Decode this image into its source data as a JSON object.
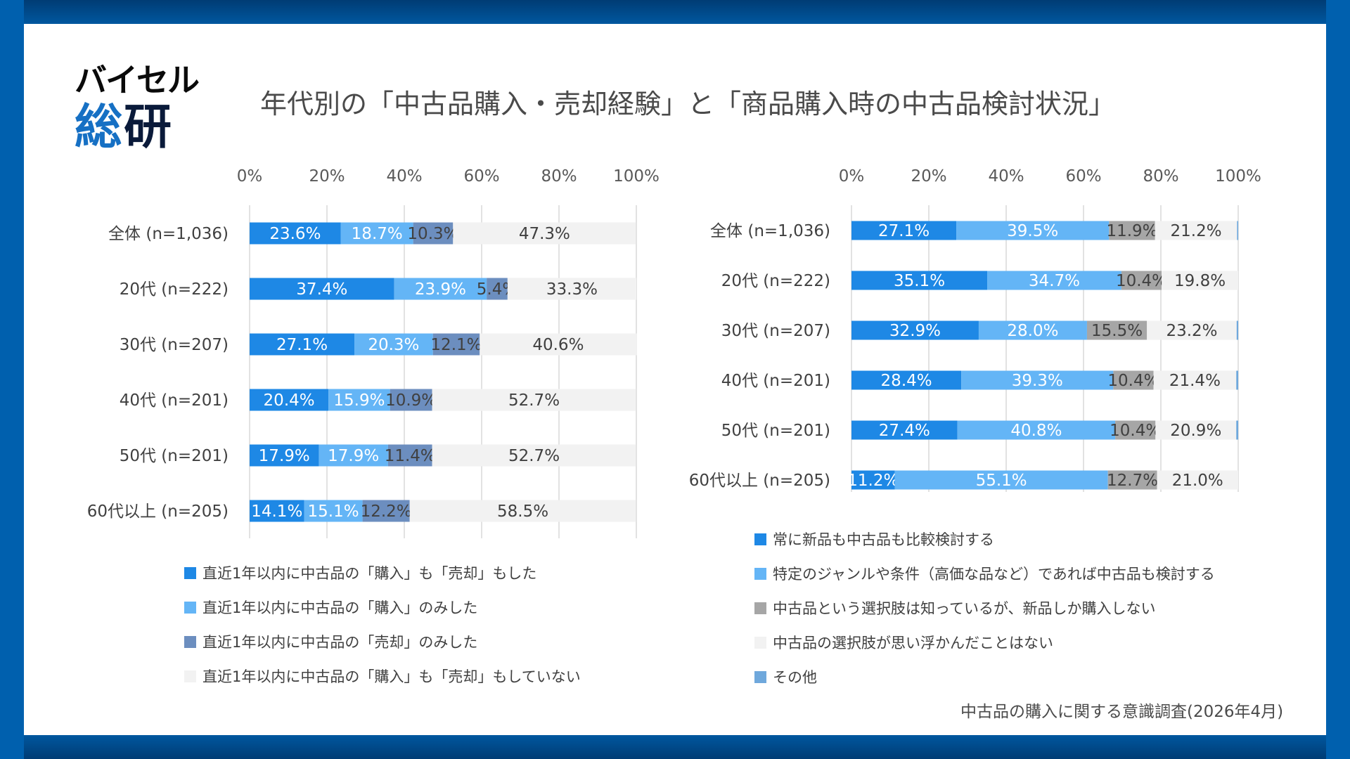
{
  "brand": {
    "logo_line1": "バイセル",
    "logo_line2a": "総",
    "logo_line2b": "研"
  },
  "title": "年代別の「中古品購入・売却経験」と「商品購入時の中古品検討状況」",
  "footnote": "中古品の購入に関する意識調査(2026年4月)",
  "colors": {
    "blue_dark": "#1E88E5",
    "blue_light": "#64B5F6",
    "steel": "#6C8EBF",
    "gray": "#A6A6A6",
    "pale": "#F2F2F2",
    "other": "#6FA8DC"
  },
  "chart_data": [
    {
      "type": "bar",
      "orientation": "horizontal",
      "stacked": true,
      "title": "",
      "xlabel": "",
      "ylabel": "",
      "xlim": [
        0,
        100
      ],
      "ticks": [
        "0%",
        "20%",
        "40%",
        "60%",
        "80%",
        "100%"
      ],
      "grid": true,
      "categories": [
        "全体 (n=1,036)",
        "20代 (n=222)",
        "30代 (n=207)",
        "40代 (n=201)",
        "50代 (n=201)",
        "60代以上 (n=205)"
      ],
      "series": [
        {
          "name": "直近1年以内に中古品の「購入」も「売却」もした",
          "color": "#1E88E5",
          "label_color": "#FFFFFF",
          "values": [
            23.6,
            37.4,
            27.1,
            20.4,
            17.9,
            14.1
          ],
          "labels": [
            "23.6%",
            "37.4%",
            "27.1%",
            "20.4%",
            "17.9%",
            "14.1%"
          ]
        },
        {
          "name": "直近1年以内に中古品の「購入」のみした",
          "color": "#64B5F6",
          "label_color": "#FFFFFF",
          "values": [
            18.7,
            23.9,
            20.3,
            15.9,
            17.9,
            15.1
          ],
          "labels": [
            "18.7%",
            "23.9%",
            "20.3%",
            "15.9%",
            "17.9%",
            "15.1%"
          ]
        },
        {
          "name": "直近1年以内に中古品の「売却」のみした",
          "color": "#6C8EBF",
          "label_color": "#404040",
          "values": [
            10.3,
            5.4,
            12.1,
            10.9,
            11.4,
            12.2
          ],
          "labels": [
            "10.3%",
            "5.4%",
            "12.1%",
            "10.9%",
            "11.4%",
            "12.2%"
          ]
        },
        {
          "name": "直近1年以内に中古品の「購入」も「売却」もしていない",
          "color": "#F2F2F2",
          "label_color": "#404040",
          "values": [
            47.3,
            33.3,
            40.6,
            52.7,
            52.7,
            58.5
          ],
          "labels": [
            "47.3%",
            "33.3%",
            "40.6%",
            "52.7%",
            "52.7%",
            "58.5%"
          ]
        }
      ],
      "legend_position": "bottom"
    },
    {
      "type": "bar",
      "orientation": "horizontal",
      "stacked": true,
      "title": "",
      "xlabel": "",
      "ylabel": "",
      "xlim": [
        0,
        100
      ],
      "ticks": [
        "0%",
        "20%",
        "40%",
        "60%",
        "80%",
        "100%"
      ],
      "grid": true,
      "categories": [
        "全体 (n=1,036)",
        "20代 (n=222)",
        "30代 (n=207)",
        "40代 (n=201)",
        "50代 (n=201)",
        "60代以上 (n=205)"
      ],
      "series": [
        {
          "name": "常に新品も中古品も比較検討する",
          "color": "#1E88E5",
          "label_color": "#FFFFFF",
          "values": [
            27.1,
            35.1,
            32.9,
            28.4,
            27.4,
            11.2
          ],
          "labels": [
            "27.1%",
            "35.1%",
            "32.9%",
            "28.4%",
            "27.4%",
            "11.2%"
          ]
        },
        {
          "name": "特定のジャンルや条件（高価な品など）であれば中古品も検討する",
          "color": "#64B5F6",
          "label_color": "#FFFFFF",
          "values": [
            39.5,
            34.7,
            28.0,
            39.3,
            40.8,
            55.1
          ],
          "labels": [
            "39.5%",
            "34.7%",
            "28.0%",
            "39.3%",
            "40.8%",
            "55.1%"
          ]
        },
        {
          "name": "中古品という選択肢は知っているが、新品しか購入しない",
          "color": "#A6A6A6",
          "label_color": "#404040",
          "values": [
            11.9,
            10.4,
            15.5,
            10.4,
            10.4,
            12.7
          ],
          "labels": [
            "11.9%",
            "10.4%",
            "15.5%",
            "10.4%",
            "10.4%",
            "12.7%"
          ]
        },
        {
          "name": "中古品の選択肢が思い浮かんだことはない",
          "color": "#F2F2F2",
          "label_color": "#404040",
          "values": [
            21.2,
            19.8,
            23.2,
            21.4,
            20.9,
            21.0
          ],
          "labels": [
            "21.2%",
            "19.8%",
            "23.2%",
            "21.4%",
            "20.9%",
            "21.0%"
          ]
        },
        {
          "name": "その他",
          "color": "#6FA8DC",
          "label_color": "#404040",
          "values": [
            0.3,
            0.0,
            0.4,
            0.5,
            0.5,
            0.0
          ],
          "labels": [
            "",
            "",
            "",
            "",
            "",
            ""
          ]
        }
      ],
      "legend_position": "bottom"
    }
  ]
}
